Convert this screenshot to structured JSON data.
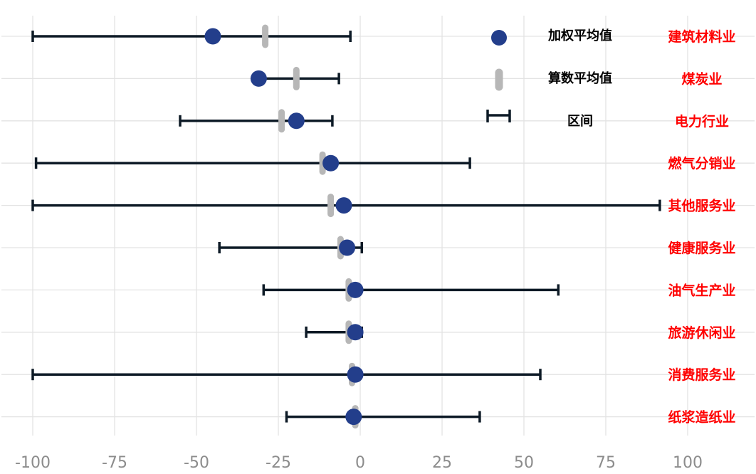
{
  "chart_data": {
    "type": "dot-interval",
    "title": "",
    "xlabel": "",
    "ylabel": "",
    "xlim": [
      -105,
      105
    ],
    "xticks": [
      -100,
      -75,
      -50,
      -25,
      0,
      25,
      50,
      75,
      100
    ],
    "xtick_labels": [
      "-100",
      "-75",
      "-50",
      "-25",
      "0",
      "25",
      "50",
      "75",
      "100"
    ],
    "grid": true,
    "legend_position": "top-right",
    "categories": [
      "建筑材料业",
      "煤炭业",
      "电力行业",
      "燃气分销业",
      "其他服务业",
      "健康服务业",
      "油气生产业",
      "旅游休闲业",
      "消费服务业",
      "纸浆造纸业"
    ],
    "series": [
      {
        "name": "加权平均值",
        "values": [
          -45,
          -31,
          -19.5,
          -9,
          -5,
          -4,
          -1.5,
          -1.5,
          -1.5,
          -2
        ]
      },
      {
        "name": "算数平均值",
        "values": [
          -29,
          -19.5,
          -24,
          -11.5,
          -9,
          -6,
          -3.5,
          -3.5,
          -2.5,
          -1.5
        ]
      },
      {
        "name": "区间",
        "low": [
          -100,
          -31,
          -55,
          -99,
          -100,
          -43,
          -29.5,
          -16.5,
          -100,
          -22.5
        ],
        "high": [
          -3,
          -6.5,
          -8.5,
          33.5,
          91.5,
          0.5,
          60.5,
          0.5,
          55,
          36.5
        ]
      }
    ],
    "colors": {
      "weighted": "#233e8b",
      "arithmetic": "#b7b7b7",
      "interval": "#0d1a26",
      "category": "#ff0000"
    }
  }
}
